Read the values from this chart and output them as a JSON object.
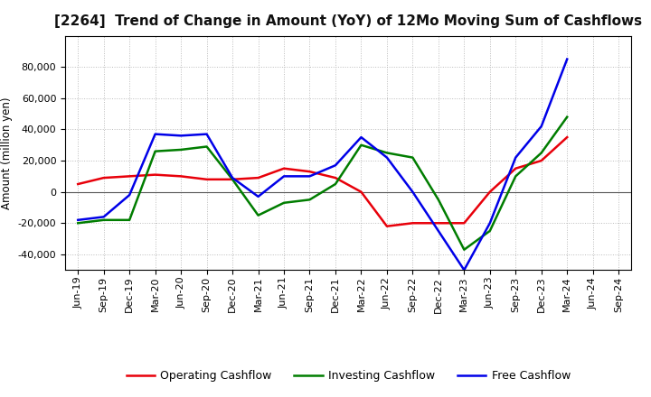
{
  "title": "[2264]  Trend of Change in Amount (YoY) of 12Mo Moving Sum of Cashflows",
  "ylabel": "Amount (million yen)",
  "labels": [
    "Jun-19",
    "Sep-19",
    "Dec-19",
    "Mar-20",
    "Jun-20",
    "Sep-20",
    "Dec-20",
    "Mar-21",
    "Jun-21",
    "Sep-21",
    "Dec-21",
    "Mar-22",
    "Jun-22",
    "Sep-22",
    "Dec-22",
    "Mar-23",
    "Jun-23",
    "Sep-23",
    "Dec-23",
    "Mar-24",
    "Jun-24",
    "Sep-24"
  ],
  "operating": [
    5000,
    9000,
    10000,
    11000,
    10000,
    8000,
    8000,
    9000,
    15000,
    13000,
    9000,
    0,
    -22000,
    -20000,
    -20000,
    -20000,
    0,
    15000,
    20000,
    35000,
    null,
    null
  ],
  "investing": [
    -20000,
    -18000,
    -18000,
    26000,
    27000,
    29000,
    8000,
    -15000,
    -7000,
    -5000,
    5000,
    30000,
    25000,
    22000,
    -5000,
    -37000,
    -25000,
    10000,
    25000,
    48000,
    null,
    null
  ],
  "free": [
    -18000,
    -16000,
    -2000,
    37000,
    36000,
    37000,
    9000,
    -3000,
    10000,
    10000,
    17000,
    35000,
    22000,
    0,
    -25000,
    -50000,
    -20000,
    22000,
    42000,
    85000,
    null,
    null
  ],
  "operating_color": "#e8000a",
  "investing_color": "#007d00",
  "free_color": "#0000e8",
  "ylim": [
    -50000,
    100000
  ],
  "yticks": [
    -40000,
    -20000,
    0,
    20000,
    40000,
    60000,
    80000
  ],
  "background_color": "#ffffff",
  "grid_color": "#bbbbbb",
  "title_fontsize": 11,
  "axis_label_fontsize": 8.5,
  "tick_fontsize": 8,
  "legend_fontsize": 9
}
